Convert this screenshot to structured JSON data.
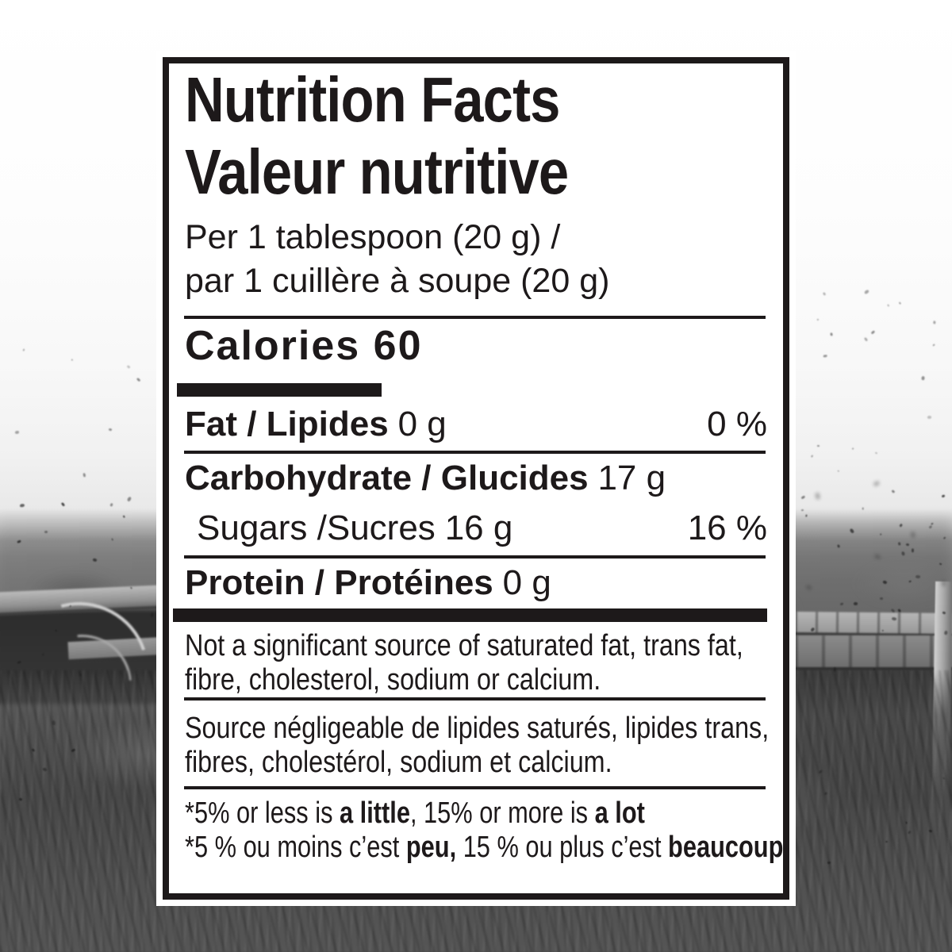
{
  "background": {
    "type": "grayscale-photo",
    "subject": "beehive boxes in a grassy field with flying bees"
  },
  "colors": {
    "ink": "#1d191a",
    "panel_bg": "#ffffff"
  },
  "label": {
    "title_en": "Nutrition Facts",
    "title_fr": "Valeur nutritive",
    "serving_en": "Per 1 tablespoon (20 g) /",
    "serving_fr": "par 1 cuillère à soupe (20 g)",
    "calories_line": "Calories 60",
    "rows": [
      {
        "label": "Fat / Lipides",
        "amount": "0 g",
        "dv": "0 %"
      },
      {
        "label": "Carbohydrate / Glucides",
        "amount": "17 g",
        "dv": ""
      },
      {
        "label": "Sugars /Sucres",
        "amount": "16 g",
        "dv": "16 %"
      },
      {
        "label": "Protein / Protéines",
        "amount": "0 g",
        "dv": ""
      }
    ],
    "note_en_line1": "Not a significant source of saturated fat, trans fat,",
    "note_en_line2": "fibre, cholesterol, sodium or calcium.",
    "note_fr_line1": "Source négligeable de lipides saturés, lipides trans,",
    "note_fr_line2": "fibres, cholestérol, sodium et calcium.",
    "footnote_en": {
      "pre": "*5% or less is ",
      "bold1": "a little",
      "mid": ", 15% or more is ",
      "bold2": "a lot"
    },
    "footnote_fr": {
      "pre": "*5 % ou moins c’est ",
      "bold1": "peu,",
      "mid": " 15 % ou plus c’est ",
      "bold2": "beaucoup"
    }
  }
}
